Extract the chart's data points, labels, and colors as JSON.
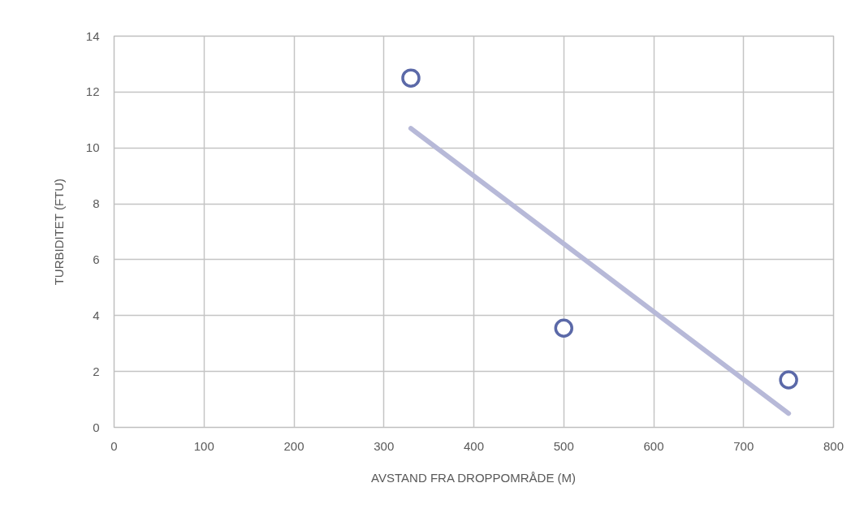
{
  "chart_data": {
    "type": "scatter",
    "xlabel": "AVSTAND FRA DROPPOMRÅDE (M)",
    "ylabel": "TURBIDITET (FTU)",
    "xlim": [
      0,
      800
    ],
    "xticks": [
      0,
      100,
      200,
      300,
      400,
      500,
      600,
      700,
      800
    ],
    "ylim": [
      0,
      14
    ],
    "yticks": [
      0,
      2,
      4,
      6,
      8,
      10,
      12,
      14
    ],
    "grid": true,
    "series": [
      {
        "color": "#5b69a8",
        "marker": "circle",
        "x": [
          330,
          500,
          750
        ],
        "values": [
          12.5,
          3.55,
          1.7
        ]
      },
      {
        "type": "line",
        "color": "#b7b9d8",
        "x": [
          330,
          750
        ],
        "values": [
          10.7,
          0.5
        ]
      }
    ]
  }
}
